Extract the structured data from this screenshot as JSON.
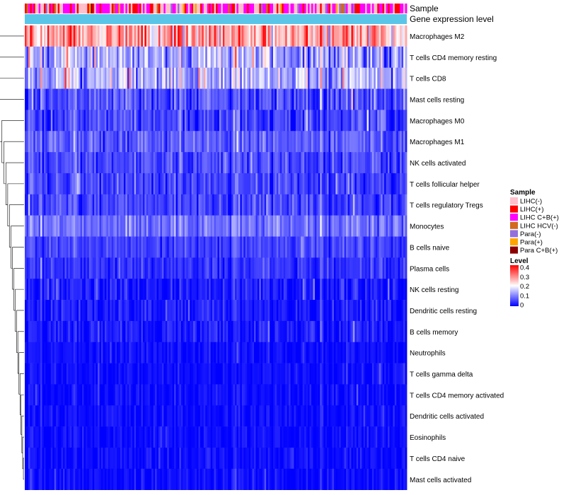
{
  "chart_data": {
    "type": "heatmap",
    "title": "",
    "annotation_tracks": [
      "Sample",
      "Gene expression level"
    ],
    "rows": [
      {
        "name": "Macrophages M2",
        "level": 0.27,
        "spread": 0.09
      },
      {
        "name": "T cells CD4 memory resting",
        "level": 0.13,
        "spread": 0.08
      },
      {
        "name": "T cells CD8",
        "level": 0.14,
        "spread": 0.07
      },
      {
        "name": "Mast cells resting",
        "level": 0.06,
        "spread": 0.05
      },
      {
        "name": "Macrophages M0",
        "level": 0.05,
        "spread": 0.05
      },
      {
        "name": "Macrophages M1",
        "level": 0.07,
        "spread": 0.04
      },
      {
        "name": "NK cells activated",
        "level": 0.06,
        "spread": 0.04
      },
      {
        "name": "T cells follicular helper",
        "level": 0.05,
        "spread": 0.04
      },
      {
        "name": "T cells regulatory  Tregs",
        "level": 0.05,
        "spread": 0.04
      },
      {
        "name": "Monocytes",
        "level": 0.09,
        "spread": 0.04
      },
      {
        "name": "B cells naive",
        "level": 0.05,
        "spread": 0.03
      },
      {
        "name": "Plasma cells",
        "level": 0.04,
        "spread": 0.03
      },
      {
        "name": "NK cells resting",
        "level": 0.02,
        "spread": 0.04
      },
      {
        "name": "Dendritic cells resting",
        "level": 0.02,
        "spread": 0.03
      },
      {
        "name": "B cells memory",
        "level": 0.02,
        "spread": 0.03
      },
      {
        "name": "Neutrophils",
        "level": 0.01,
        "spread": 0.02
      },
      {
        "name": "T cells gamma delta",
        "level": 0.01,
        "spread": 0.02
      },
      {
        "name": "T cells CD4 memory activated",
        "level": 0.01,
        "spread": 0.02
      },
      {
        "name": "Dendritic cells activated",
        "level": 0.01,
        "spread": 0.02
      },
      {
        "name": "Eosinophils",
        "level": 0.01,
        "spread": 0.02
      },
      {
        "name": "T cells CD4 naive",
        "level": 0.01,
        "spread": 0.02
      },
      {
        "name": "Mast cells activated",
        "level": 0.01,
        "spread": 0.02
      }
    ],
    "n_samples": 220,
    "sample_legend": {
      "title": "Sample",
      "entries": [
        {
          "label": "LIHC(-)",
          "color": "#ffc0cb"
        },
        {
          "label": "LIHC(+)",
          "color": "#ff0000"
        },
        {
          "label": "LIHC C+B(+)",
          "color": "#ff00ff"
        },
        {
          "label": "LIHC HCV(-)",
          "color": "#d2691e"
        },
        {
          "label": "Para(-)",
          "color": "#9370db"
        },
        {
          "label": "Para(+)",
          "color": "#ffa500"
        },
        {
          "label": "Para C+B(+)",
          "color": "#8b0000"
        }
      ]
    },
    "level_legend": {
      "title": "Level",
      "ticks": [
        "0.4",
        "0.3",
        "0.2",
        "0.1",
        "0"
      ],
      "range": [
        0,
        0.4
      ],
      "colors": [
        "#0000ff",
        "#ffffff",
        "#ff0000"
      ]
    },
    "gene_track_color": "#5bc5e8"
  }
}
